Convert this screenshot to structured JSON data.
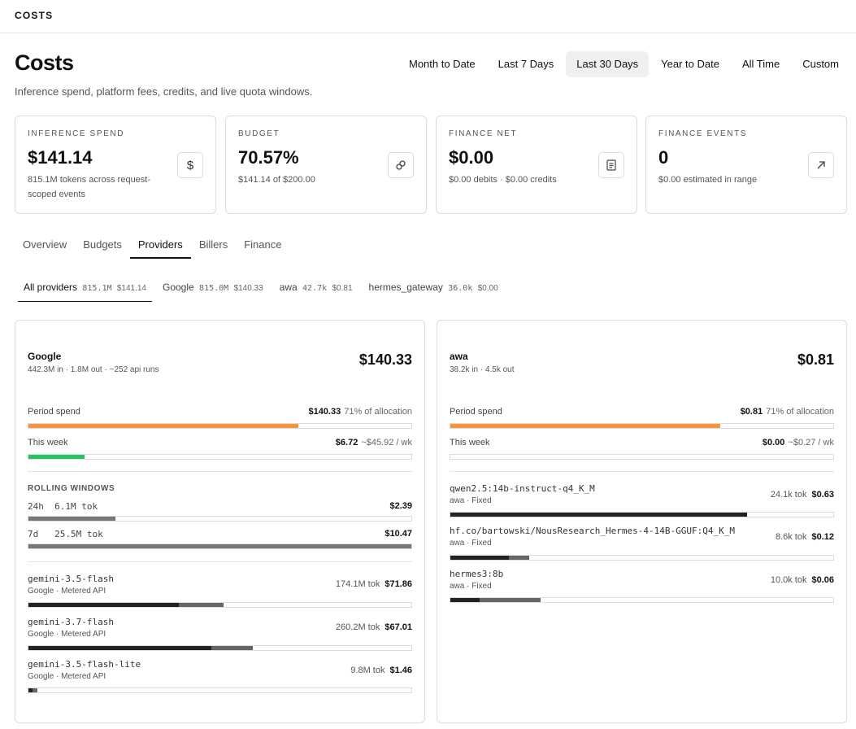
{
  "topbar": {
    "title": "COSTS"
  },
  "header": {
    "title": "Costs",
    "subtitle": "Inference spend, platform fees, credits, and live quota windows."
  },
  "range_tabs": [
    "Month to Date",
    "Last 7 Days",
    "Last 30 Days",
    "Year to Date",
    "All Time",
    "Custom"
  ],
  "range_active": "Last 30 Days",
  "stats": [
    {
      "label": "INFERENCE SPEND",
      "value": "$141.14",
      "sub": "815.1M tokens across request-scoped events",
      "icon": "dollar-icon"
    },
    {
      "label": "BUDGET",
      "value": "70.57%",
      "sub": "$141.14 of $200.00",
      "icon": "link-icon"
    },
    {
      "label": "FINANCE NET",
      "value": "$0.00",
      "sub": "$0.00 debits · $0.00 credits",
      "icon": "document-icon"
    },
    {
      "label": "FINANCE EVENTS",
      "value": "0",
      "sub": "$0.00 estimated in range",
      "icon": "arrow-up-right-icon"
    }
  ],
  "main_tabs": [
    "Overview",
    "Budgets",
    "Providers",
    "Billers",
    "Finance"
  ],
  "main_tab_active": "Providers",
  "provider_tabs": [
    {
      "name": "All providers",
      "tokens": "815.1M",
      "amount": "$141.14"
    },
    {
      "name": "Google",
      "tokens": "815.0M",
      "amount": "$140.33"
    },
    {
      "name": "awa",
      "tokens": "42.7k",
      "amount": "$0.81"
    },
    {
      "name": "hermes_gateway",
      "tokens": "36.0k",
      "amount": "$0.00"
    }
  ],
  "provider_tab_active": "All providers",
  "colors": {
    "orange": "#fb923c",
    "green": "#22c55e",
    "dark": "#222222",
    "gray": "#666666",
    "rolling": "#777777"
  },
  "providers": [
    {
      "name": "Google",
      "meta": "442.3M in · 1.8M out  · ~252 api runs",
      "total": "$140.33",
      "period": {
        "label": "Period spend",
        "amount": "$140.33",
        "note": "71% of allocation",
        "fraction": 0.705
      },
      "week": {
        "label": "This week",
        "amount": "$6.72",
        "note": "~$45.92 / wk",
        "fraction": 0.146
      },
      "rolling": {
        "label": "ROLLING WINDOWS",
        "windows": [
          {
            "period": "24h",
            "tokens": "6.1M tok",
            "amount": "$2.39",
            "fraction": 0.228
          },
          {
            "period": "7d",
            "tokens": "25.5M tok",
            "amount": "$10.47",
            "fraction": 1.0
          }
        ]
      },
      "models": [
        {
          "name": "gemini-3.5-flash",
          "meta": "Google · Metered API",
          "tokens": "174.1M tok",
          "amount": "$71.86",
          "dark": 0.392,
          "gray": 0.118
        },
        {
          "name": "gemini-3.7-flash",
          "meta": "Google · Metered API",
          "tokens": "260.2M tok",
          "amount": "$67.01",
          "dark": 0.478,
          "gray": 0.107
        },
        {
          "name": "gemini-3.5-flash-lite",
          "meta": "Google · Metered API",
          "tokens": "9.8M tok",
          "amount": "$1.46",
          "dark": 0.011,
          "gray": 0.012
        }
      ]
    },
    {
      "name": "awa",
      "meta": "38.2k in · 4.5k out",
      "total": "$0.81",
      "period": {
        "label": "Period spend",
        "amount": "$0.81",
        "note": "71% of allocation",
        "fraction": 0.705
      },
      "week": {
        "label": "This week",
        "amount": "$0.00",
        "note": "~$0.27 / wk",
        "fraction": 0.0
      },
      "models": [
        {
          "name": "qwen2.5:14b-instruct-q4_K_M",
          "meta": "awa · Fixed",
          "tokens": "24.1k tok",
          "amount": "$0.63",
          "dark": 0.565,
          "gray": 0.211
        },
        {
          "name": "hf.co/bartowski/NousResearch_Hermes-4-14B-GGUF:Q4_K_M",
          "meta": "awa · Fixed",
          "tokens": "8.6k tok",
          "amount": "$0.12",
          "dark": 0.152,
          "gray": 0.053
        },
        {
          "name": "hermes3:8b",
          "meta": "awa · Fixed",
          "tokens": "10.0k tok",
          "amount": "$0.06",
          "dark": 0.076,
          "gray": 0.16
        }
      ]
    }
  ]
}
